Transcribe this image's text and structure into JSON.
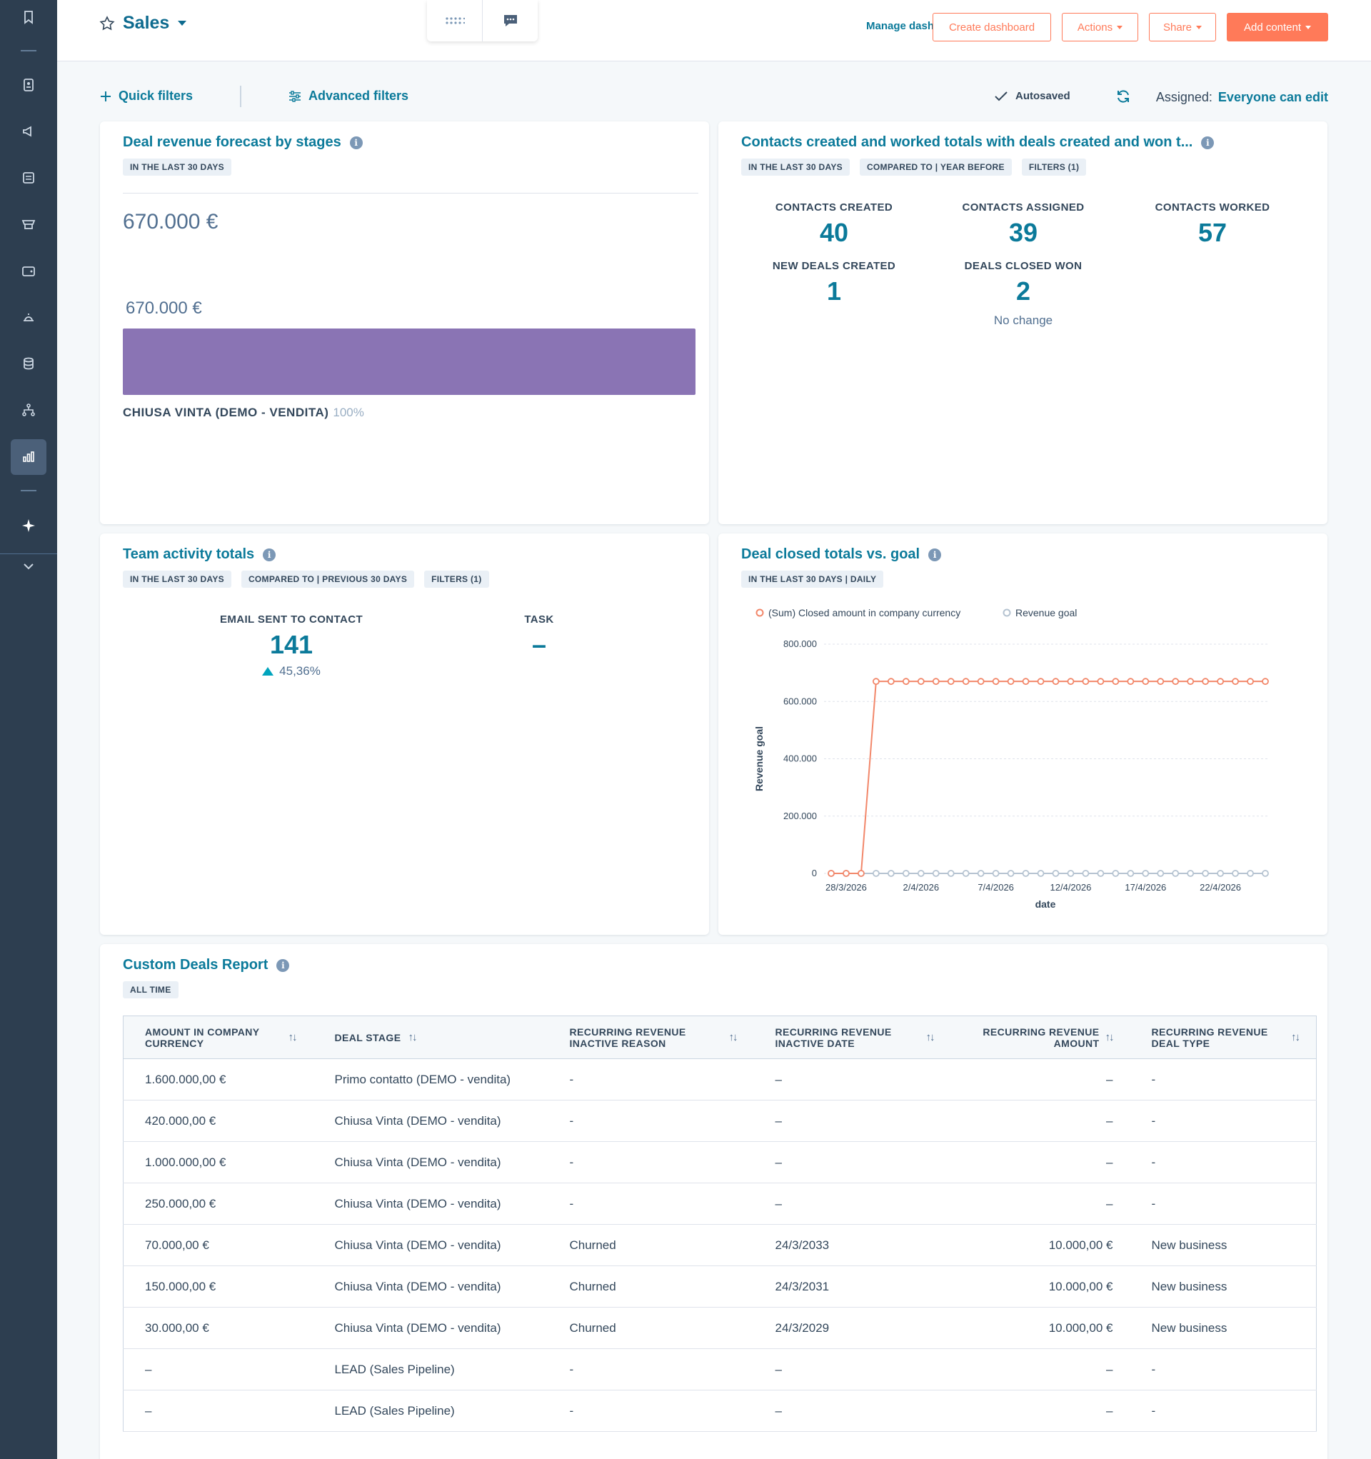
{
  "header": {
    "title": "Sales",
    "manage_link": "Manage dashboards",
    "create_btn": "Create dashboard",
    "actions_btn": "Actions",
    "share_btn": "Share",
    "add_btn": "Add content"
  },
  "filters": {
    "quick": "Quick filters",
    "advanced": "Advanced filters",
    "autosaved": "Autosaved",
    "assigned_label": "Assigned:",
    "assigned_value": "Everyone can edit"
  },
  "card1": {
    "title": "Deal revenue forecast by stages",
    "tags": [
      "IN THE LAST 30 DAYS"
    ],
    "total": "670.000 €",
    "bar_value": "670.000 €",
    "bar_fraction": 1.0,
    "stage": "CHIUSA VINTA (DEMO - VENDITA)",
    "stage_pct": "100%"
  },
  "card2": {
    "title": "Contacts created and worked totals with deals created and won t...",
    "tags": [
      "IN THE LAST 30 DAYS",
      "COMPARED TO | YEAR BEFORE",
      "FILTERS (1)"
    ],
    "kpis": [
      {
        "label": "CONTACTS CREATED",
        "value": "40"
      },
      {
        "label": "CONTACTS ASSIGNED",
        "value": "39"
      },
      {
        "label": "CONTACTS WORKED",
        "value": "57"
      },
      {
        "label": "NEW DEALS CREATED",
        "value": "1"
      },
      {
        "label": "DEALS CLOSED WON",
        "value": "2",
        "note": "No change"
      }
    ]
  },
  "card3": {
    "title": "Team activity totals",
    "tags": [
      "IN THE LAST 30 DAYS",
      "COMPARED TO | PREVIOUS 30 DAYS",
      "FILTERS (1)"
    ],
    "kpis": [
      {
        "label": "EMAIL SENT TO CONTACT",
        "value": "141",
        "change": "45,36%"
      },
      {
        "label": "TASK",
        "value": "–"
      }
    ]
  },
  "card4": {
    "title": "Deal closed totals vs. goal",
    "tags": [
      "IN THE LAST 30 DAYS | DAILY"
    ]
  },
  "chart_data": {
    "type": "line",
    "title": "Deal closed totals vs. goal",
    "xlabel": "date",
    "ylabel": "Revenue goal",
    "ylim": [
      0,
      800000
    ],
    "yticks": [
      "0",
      "200.000",
      "400.000",
      "600.000",
      "800.000"
    ],
    "xticks": [
      "28/3/2026",
      "2/4/2026",
      "7/4/2026",
      "12/4/2026",
      "17/4/2026",
      "22/4/2026"
    ],
    "legend_position": "top-left",
    "grid": true,
    "x": [
      "27/3/2026",
      "28/3/2026",
      "29/3/2026",
      "30/3/2026",
      "31/3/2026",
      "1/4/2026",
      "2/4/2026",
      "3/4/2026",
      "4/4/2026",
      "5/4/2026",
      "6/4/2026",
      "7/4/2026",
      "8/4/2026",
      "9/4/2026",
      "10/4/2026",
      "11/4/2026",
      "12/4/2026",
      "13/4/2026",
      "14/4/2026",
      "15/4/2026",
      "16/4/2026",
      "17/4/2026",
      "18/4/2026",
      "19/4/2026",
      "20/4/2026",
      "21/4/2026",
      "22/4/2026",
      "23/4/2026",
      "24/4/2026",
      "25/4/2026"
    ],
    "series": [
      {
        "name": "(Sum) Closed amount in company currency",
        "color": "#f2876a",
        "values": [
          0,
          0,
          0,
          670000,
          670000,
          670000,
          670000,
          670000,
          670000,
          670000,
          670000,
          670000,
          670000,
          670000,
          670000,
          670000,
          670000,
          670000,
          670000,
          670000,
          670000,
          670000,
          670000,
          670000,
          670000,
          670000,
          670000,
          670000,
          670000,
          670000
        ]
      },
      {
        "name": "Revenue goal",
        "color": "#b5c3d1",
        "values": [
          0,
          0,
          0,
          0,
          0,
          0,
          0,
          0,
          0,
          0,
          0,
          0,
          0,
          0,
          0,
          0,
          0,
          0,
          0,
          0,
          0,
          0,
          0,
          0,
          0,
          0,
          0,
          0,
          0,
          0
        ]
      }
    ]
  },
  "table": {
    "title": "Custom Deals Report",
    "tags": [
      "ALL TIME"
    ],
    "columns": [
      [
        "AMOUNT IN COMPANY",
        "CURRENCY"
      ],
      [
        "DEAL STAGE",
        ""
      ],
      [
        "RECURRING REVENUE",
        "INACTIVE REASON"
      ],
      [
        "RECURRING REVENUE",
        "INACTIVE DATE"
      ],
      [
        "RECURRING REVENUE",
        "AMOUNT"
      ],
      [
        "RECURRING REVENUE",
        "DEAL TYPE"
      ]
    ],
    "rows": [
      [
        "1.600.000,00 €",
        "Primo contatto (DEMO - vendita)",
        "-",
        "–",
        "–",
        "-"
      ],
      [
        "420.000,00 €",
        "Chiusa Vinta (DEMO - vendita)",
        "-",
        "–",
        "–",
        "-"
      ],
      [
        "1.000.000,00 €",
        "Chiusa Vinta (DEMO - vendita)",
        "-",
        "–",
        "–",
        "-"
      ],
      [
        "250.000,00 €",
        "Chiusa Vinta (DEMO - vendita)",
        "-",
        "–",
        "–",
        "-"
      ],
      [
        "70.000,00 €",
        "Chiusa Vinta (DEMO - vendita)",
        "Churned",
        "24/3/2033",
        "10.000,00 €",
        "New business"
      ],
      [
        "150.000,00 €",
        "Chiusa Vinta (DEMO - vendita)",
        "Churned",
        "24/3/2031",
        "10.000,00 €",
        "New business"
      ],
      [
        "30.000,00 €",
        "Chiusa Vinta (DEMO - vendita)",
        "Churned",
        "24/3/2029",
        "10.000,00 €",
        "New business"
      ],
      [
        "–",
        "LEAD (Sales Pipeline)",
        "-",
        "–",
        "–",
        "-"
      ],
      [
        "–",
        "LEAD (Sales Pipeline)",
        "-",
        "–",
        "–",
        "-"
      ]
    ]
  },
  "colors": {
    "accent": "#0b7a9a",
    "cta": "#ff7a59",
    "sidebar": "#2d3e50",
    "bar": "#8a74b4"
  },
  "sidebar_icons": [
    "bookmark-icon",
    "contacts-icon",
    "megaphone-icon",
    "content-icon",
    "commerce-icon",
    "wallet-icon",
    "service-bell-icon",
    "database-icon",
    "automation-icon",
    "reports-icon",
    "sparkle-icon",
    "chevron-down-icon"
  ]
}
